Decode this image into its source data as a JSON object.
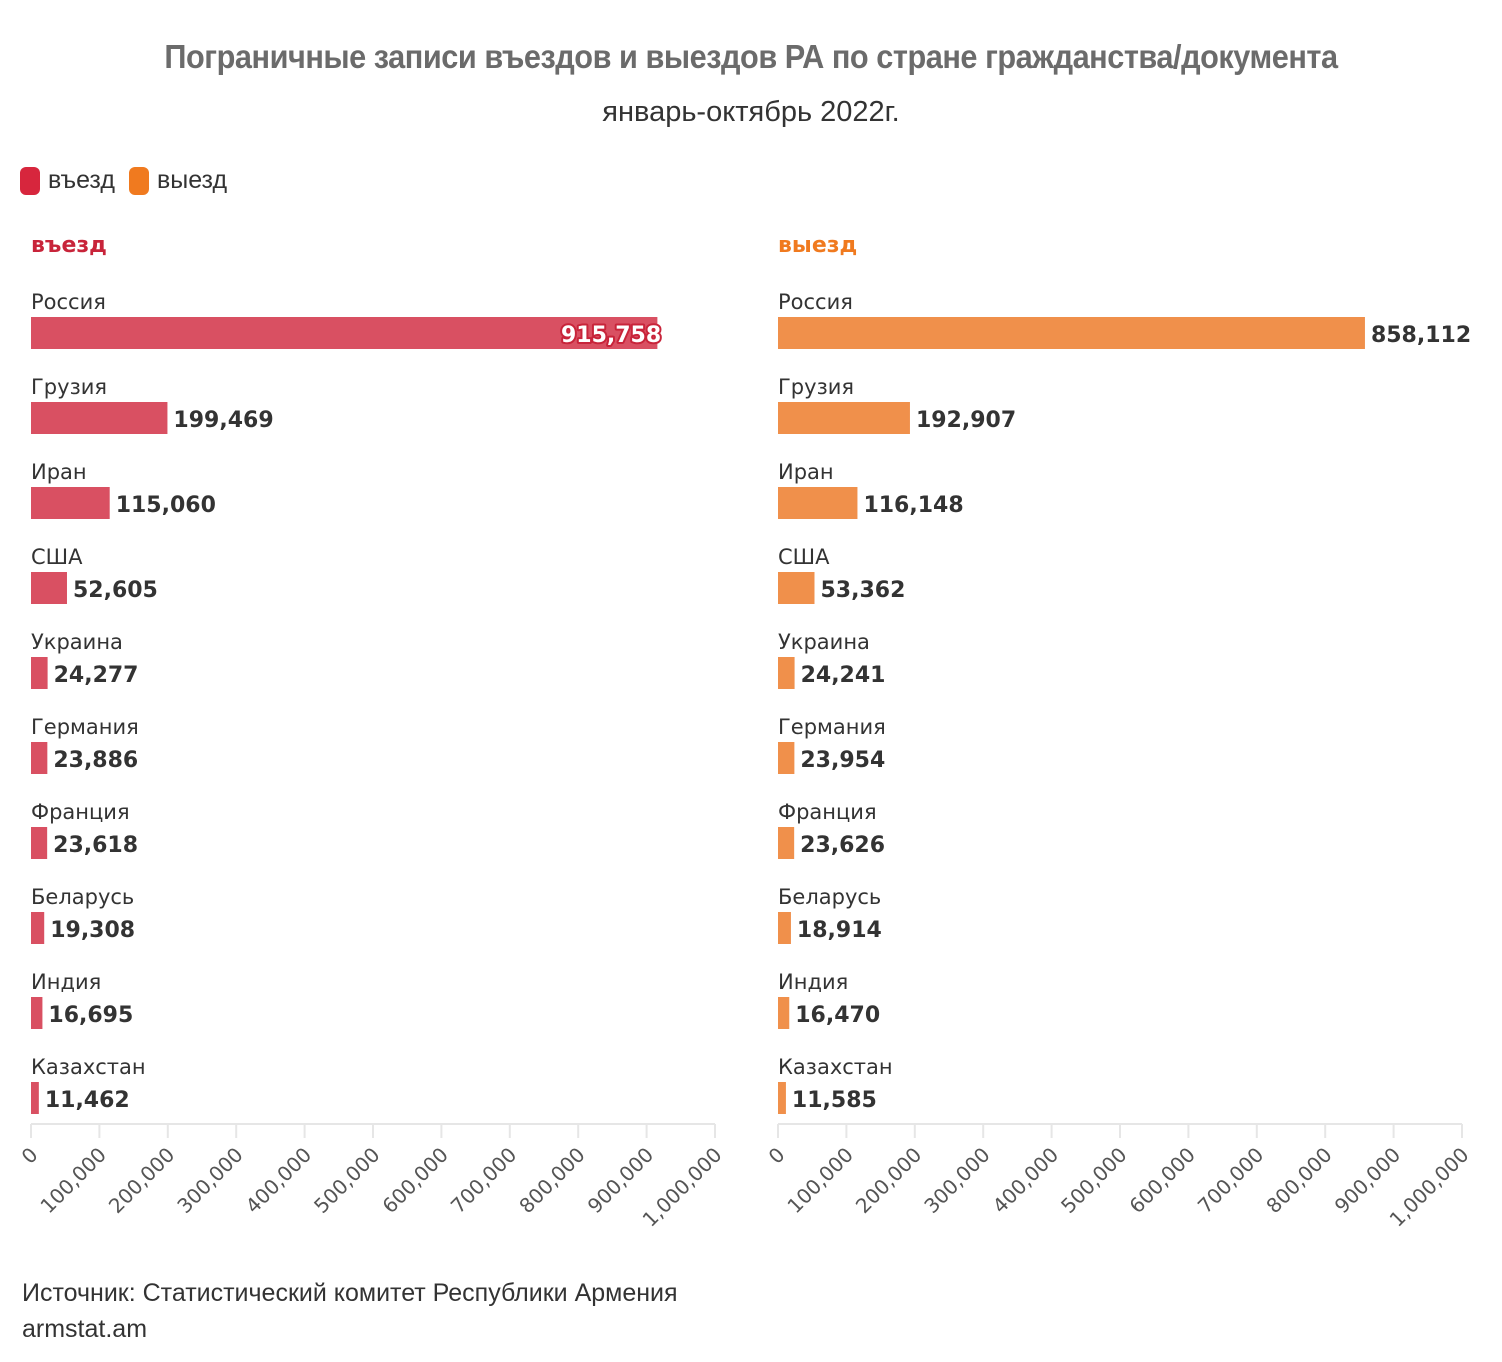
{
  "header": {
    "title": "Пограничные записи въездов и выездов РА по стране гражданства/документа",
    "subtitle": "январь-октябрь 2022г."
  },
  "legend": [
    {
      "label": "въезд",
      "color": "#d7263d"
    },
    {
      "label": "выезд",
      "color": "#f07a1f"
    }
  ],
  "footer": {
    "source": "Источник: Статистический комитет Республики Армения",
    "site": "armstat.am"
  },
  "chart_data": [
    {
      "type": "bar",
      "orientation": "horizontal",
      "title": "въезд",
      "title_color": "#c8243a",
      "bar_color": "#d95062",
      "categories": [
        "Россия",
        "Грузия",
        "Иран",
        "США",
        "Украина",
        "Германия",
        "Франция",
        "Беларусь",
        "Индия",
        "Казахстан"
      ],
      "values": [
        915758,
        199469,
        115060,
        52605,
        24277,
        23886,
        23618,
        19308,
        16695,
        11462
      ],
      "value_labels": [
        "915,758",
        "199,469",
        "115,060",
        "52,605",
        "24,277",
        "23,886",
        "23,618",
        "19,308",
        "16,695",
        "11,462"
      ],
      "xlim": [
        0,
        1000000
      ],
      "x_ticks": [
        0,
        100000,
        200000,
        300000,
        400000,
        500000,
        600000,
        700000,
        800000,
        900000,
        1000000
      ],
      "x_tick_labels": [
        "0",
        "100,000",
        "200,000",
        "300,000",
        "400,000",
        "500,000",
        "600,000",
        "700,000",
        "800,000",
        "900,000",
        "1,000,000"
      ],
      "grid": false
    },
    {
      "type": "bar",
      "orientation": "horizontal",
      "title": "выезд",
      "title_color": "#f07a1f",
      "bar_color": "#f0904b",
      "categories": [
        "Россия",
        "Грузия",
        "Иран",
        "США",
        "Украина",
        "Германия",
        "Франция",
        "Беларусь",
        "Индия",
        "Казахстан"
      ],
      "values": [
        858112,
        192907,
        116148,
        53362,
        24241,
        23954,
        23626,
        18914,
        16470,
        11585
      ],
      "value_labels": [
        "858,112",
        "192,907",
        "116,148",
        "53,362",
        "24,241",
        "23,954",
        "23,626",
        "18,914",
        "16,470",
        "11,585"
      ],
      "xlim": [
        0,
        1000000
      ],
      "x_ticks": [
        0,
        100000,
        200000,
        300000,
        400000,
        500000,
        600000,
        700000,
        800000,
        900000,
        1000000
      ],
      "x_tick_labels": [
        "0",
        "100,000",
        "200,000",
        "300,000",
        "400,000",
        "500,000",
        "600,000",
        "700,000",
        "800,000",
        "900,000",
        "1,000,000"
      ],
      "grid": false
    }
  ]
}
